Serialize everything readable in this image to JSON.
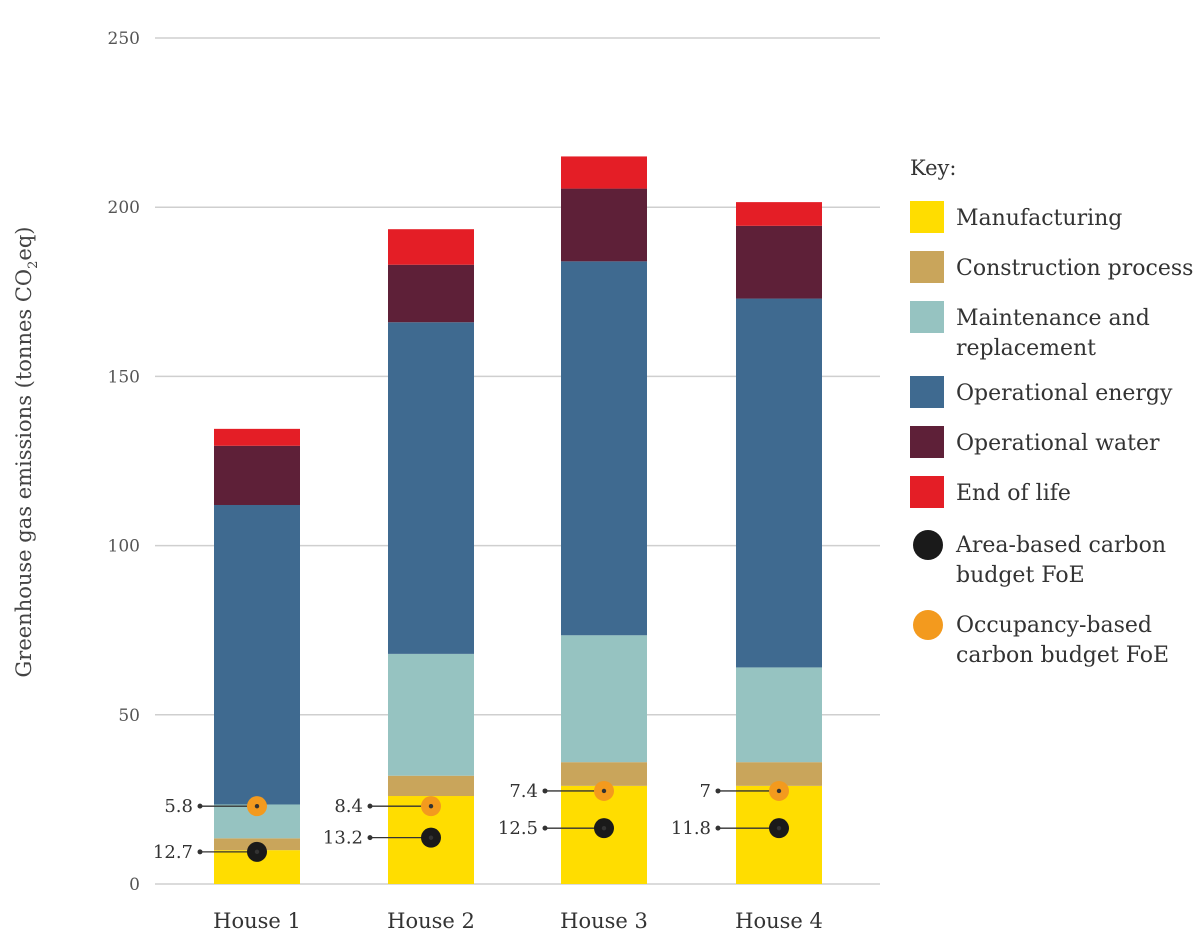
{
  "chart_data": {
    "type": "bar",
    "stacked": true,
    "categories": [
      "House 1",
      "House 2",
      "House 3",
      "House 4"
    ],
    "ylabel": "Greenhouse gas emissions (tonnes CO2eq)",
    "ylim": [
      0,
      250
    ],
    "yticks": [
      0,
      50,
      100,
      150,
      200,
      250
    ],
    "grid": true,
    "legend_title": "Key:",
    "legend_position": "right",
    "series": [
      {
        "name": "Manufacturing",
        "color": "#FFDD00",
        "values": [
          10,
          26,
          29,
          29
        ]
      },
      {
        "name": "Construction process",
        "color": "#C9A55B",
        "values": [
          3.5,
          6,
          7,
          7
        ]
      },
      {
        "name": "Maintenance and replacement",
        "color": "#96C3C1",
        "values": [
          10,
          36,
          37.5,
          28
        ]
      },
      {
        "name": "Operational energy",
        "color": "#3F6A90",
        "values": [
          88.5,
          98,
          110.5,
          109
        ]
      },
      {
        "name": "Operational water",
        "color": "#5E2038",
        "values": [
          17.5,
          17,
          21.5,
          21.5
        ]
      },
      {
        "name": "End of life",
        "color": "#E41E26",
        "values": [
          5,
          10.5,
          9.5,
          7
        ]
      }
    ],
    "markers": [
      {
        "name": "Area-based carbon budget FoE",
        "color": "#1A1A1A",
        "values": [
          12.7,
          13.2,
          12.5,
          11.8
        ],
        "y_positions": [
          9.5,
          13.7,
          16.5,
          16.5
        ]
      },
      {
        "name": "Occupancy-based carbon budget FoE",
        "color": "#F39A1E",
        "values": [
          5.8,
          8.4,
          7.4,
          7
        ],
        "y_positions": [
          23,
          23,
          27.5,
          27.5
        ]
      }
    ]
  }
}
